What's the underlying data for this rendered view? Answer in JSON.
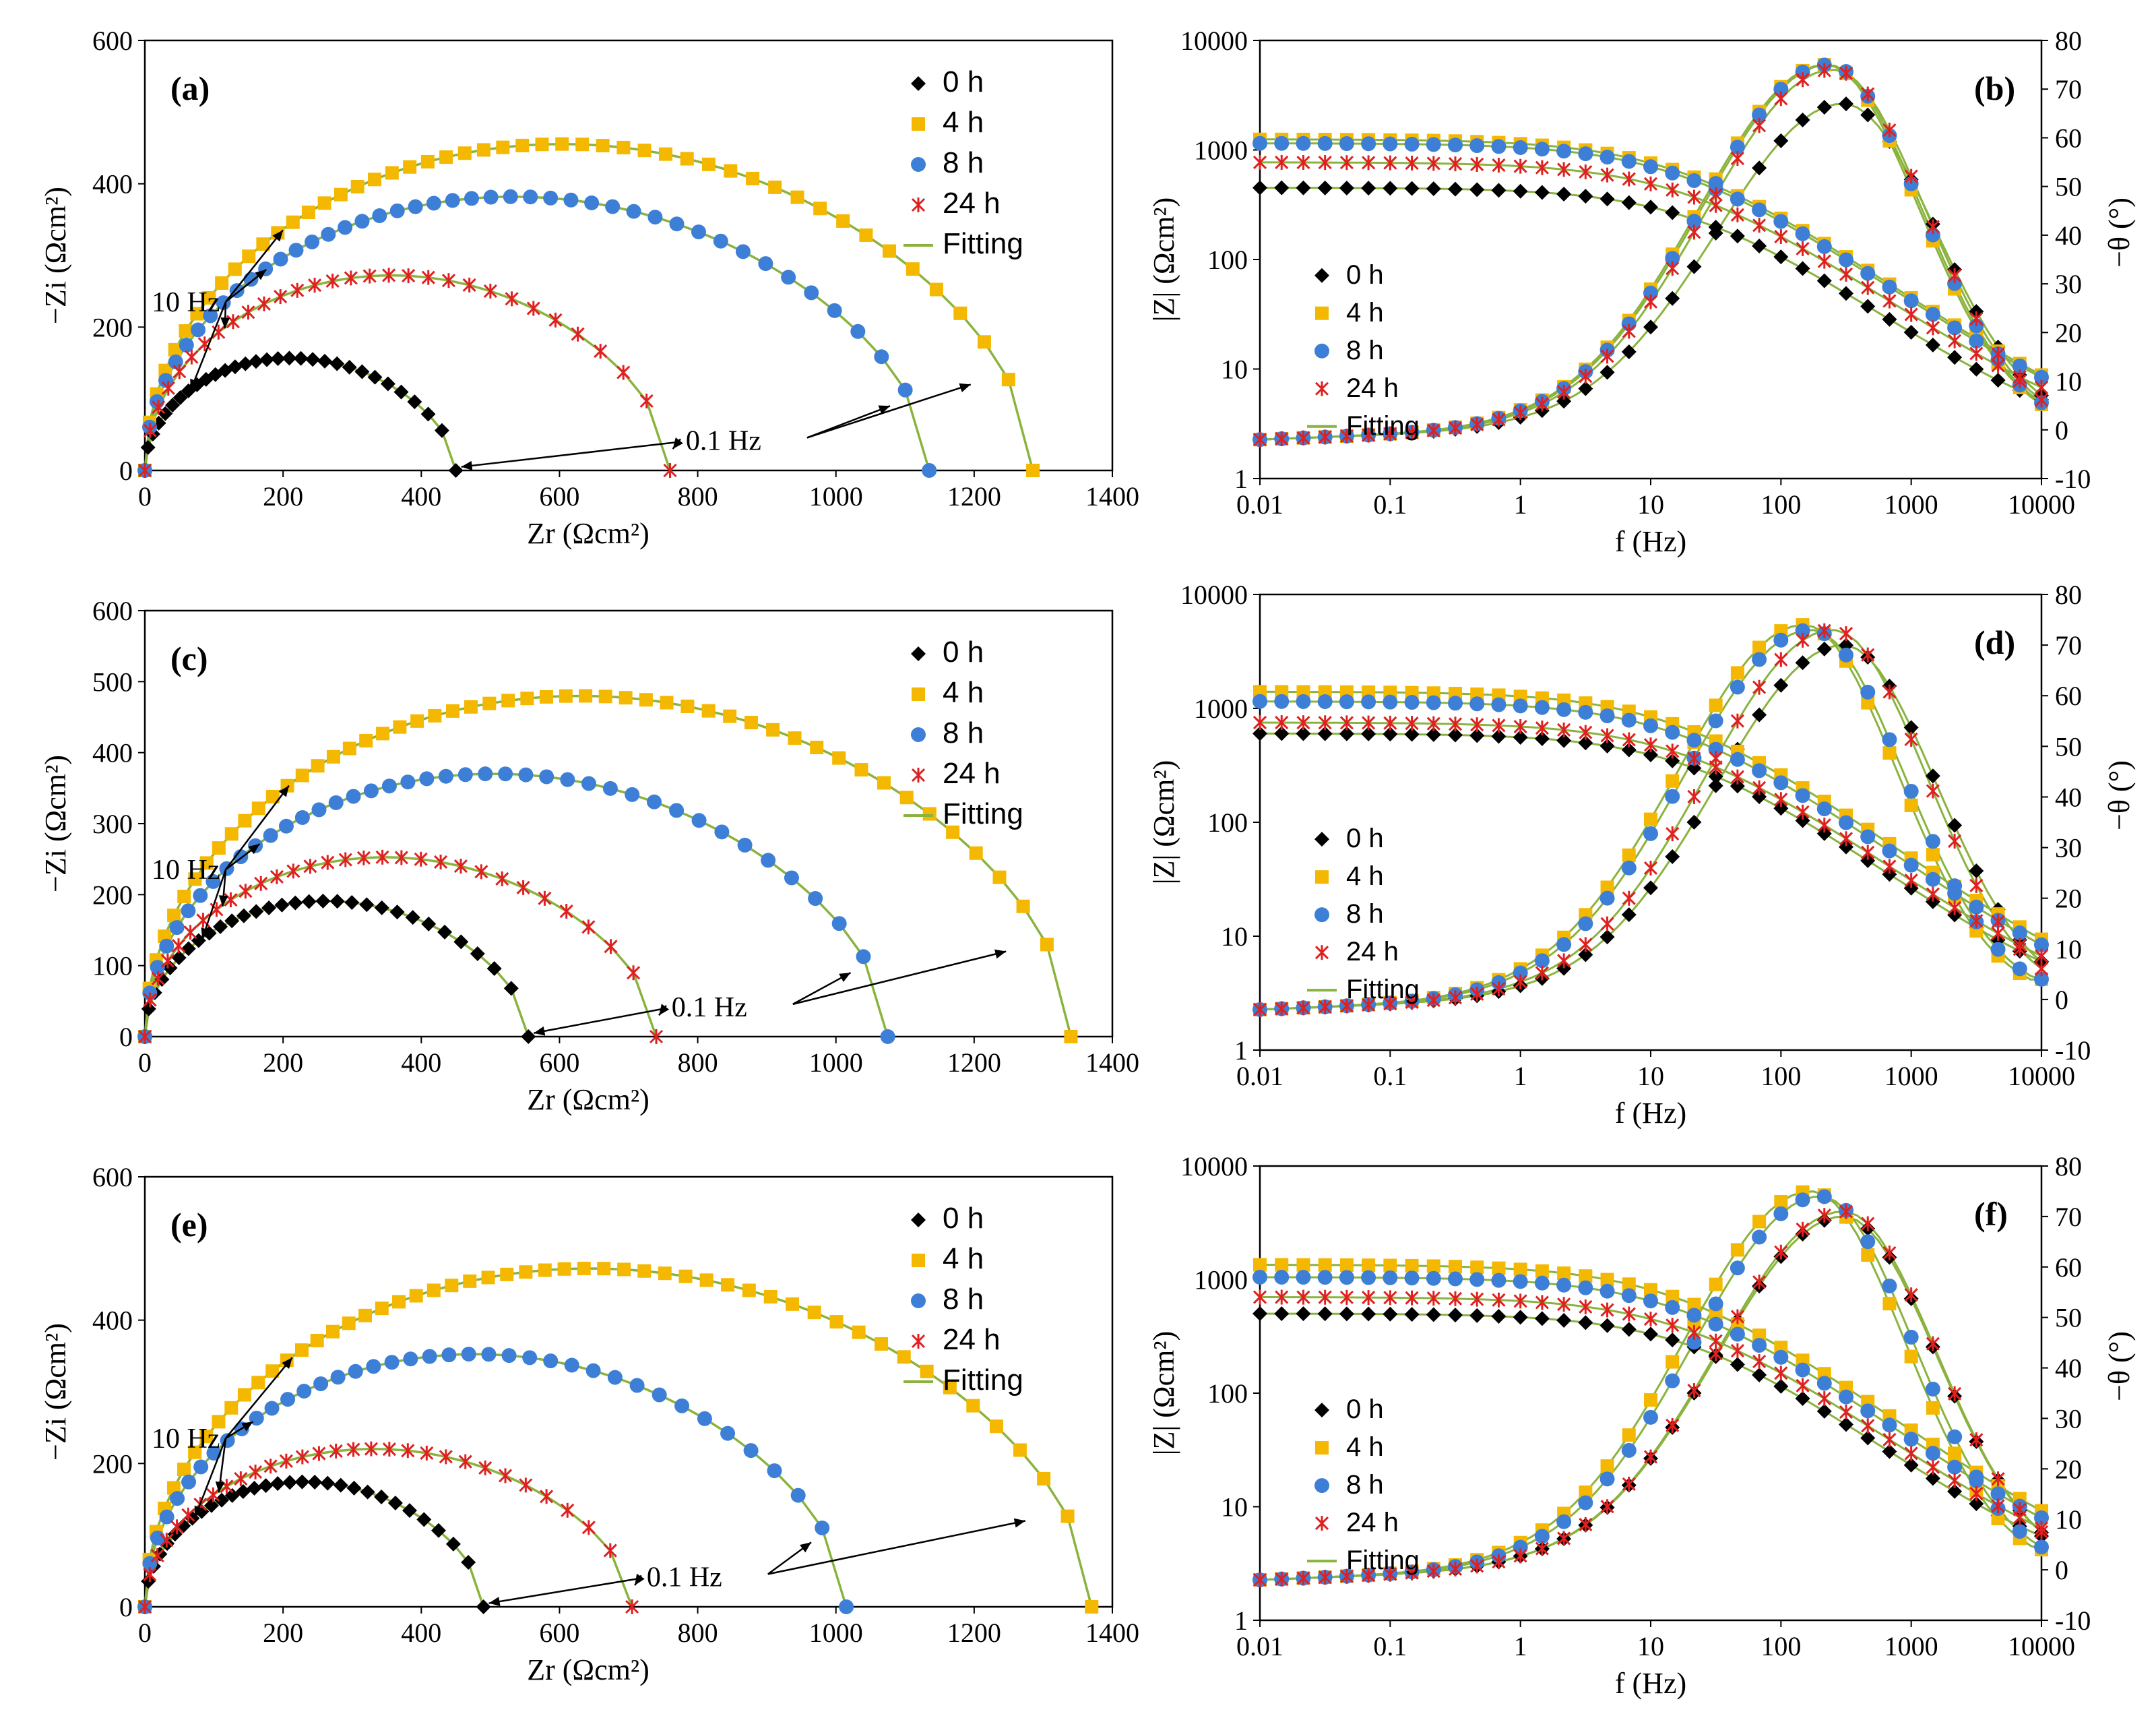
{
  "figure": {
    "nyquist_xlabel": "Zr (Ωcm²)",
    "nyquist_ylabel": "−Zi (Ωcm²)",
    "bode_xlabel": "f (Hz)",
    "bode_ylabel_left": "|Z|  (Ωcm²)",
    "bode_ylabel_right": "−θ (°)"
  },
  "colors": {
    "0 h": "#000000",
    "4 h": "#f5b800",
    "8 h": "#3d7fd6",
    "24 h": "#e02020",
    "Fitting": "#8ab33e"
  },
  "legend_labels": [
    "0 h",
    "4 h",
    "8 h",
    "24 h",
    "Fitting"
  ],
  "chart_data": [
    {
      "panel": "(a)",
      "type": "scatter",
      "xlabel": "Zr (Ωcm²)",
      "ylabel": "−Zi (Ωcm²)",
      "xlim": [
        0,
        1400
      ],
      "ylim": [
        0,
        600
      ],
      "xticks": [
        0,
        200,
        400,
        600,
        800,
        1000,
        1200,
        1400
      ],
      "yticks": [
        0,
        200,
        400,
        600
      ],
      "annotations": [
        "10 Hz",
        "0.1 Hz"
      ],
      "series": [
        {
          "name": "0 h",
          "R": 450,
          "peak": 160,
          "xpeak": 225
        },
        {
          "name": "4 h",
          "R": 1285,
          "peak": 465,
          "xpeak": 600
        },
        {
          "name": "8 h",
          "R": 1135,
          "peak": 390,
          "xpeak": 490
        },
        {
          "name": "24 h",
          "R": 760,
          "peak": 278,
          "xpeak": 370
        }
      ]
    },
    {
      "panel": "(b)",
      "type": "line",
      "xlabel": "f (Hz)",
      "ylabel": "|Z|  (Ωcm²)",
      "y2label": "−θ (°)",
      "xlim": [
        0.01,
        10000
      ],
      "ylim": [
        1,
        10000
      ],
      "y2lim": [
        -10,
        80
      ],
      "xticks": [
        "0.01",
        "0.1",
        "1",
        "10",
        "100",
        "1000",
        "10000"
      ],
      "yticks": [
        "1",
        "10",
        "100",
        "1000",
        "10000"
      ],
      "y2ticks": [
        "-10",
        "0",
        "10",
        "20",
        "30",
        "40",
        "50",
        "60",
        "70",
        "80"
      ],
      "series": [
        {
          "name": "0 h",
          "R": 450,
          "theta_peak": 67,
          "f_peak": 300
        },
        {
          "name": "4 h",
          "R": 1250,
          "theta_peak": 75,
          "f_peak": 220
        },
        {
          "name": "8 h",
          "R": 1150,
          "theta_peak": 75,
          "f_peak": 230
        },
        {
          "name": "24 h",
          "R": 770,
          "theta_peak": 74,
          "f_peak": 250
        }
      ]
    },
    {
      "panel": "(c)",
      "type": "scatter",
      "xlabel": "Zr (Ωcm²)",
      "ylabel": "−Zi (Ωcm²)",
      "xlim": [
        0,
        1400
      ],
      "ylim": [
        0,
        600
      ],
      "xticks": [
        0,
        200,
        400,
        600,
        800,
        1000,
        1200,
        1400
      ],
      "yticks": [
        0,
        100,
        200,
        300,
        400,
        500,
        600
      ],
      "annotations": [
        "10 Hz",
        "0.1 Hz"
      ],
      "series": [
        {
          "name": "0 h",
          "R": 555,
          "peak": 195,
          "xpeak": 270
        },
        {
          "name": "4 h",
          "R": 1340,
          "peak": 490,
          "xpeak": 600
        },
        {
          "name": "8 h",
          "R": 1075,
          "peak": 378,
          "xpeak": 500
        },
        {
          "name": "24 h",
          "R": 740,
          "peak": 258,
          "xpeak": 370
        }
      ]
    },
    {
      "panel": "(d)",
      "type": "line",
      "xlabel": "f (Hz)",
      "ylabel": "|Z|  (Ωcm²)",
      "y2label": "−θ (°)",
      "xlim": [
        0.01,
        10000
      ],
      "ylim": [
        1,
        10000
      ],
      "y2lim": [
        -10,
        80
      ],
      "xticks": [
        "0.01",
        "0.1",
        "1",
        "10",
        "100",
        "1000",
        "10000"
      ],
      "yticks": [
        "1",
        "10",
        "100",
        "1000",
        "10000"
      ],
      "y2ticks": [
        "-10",
        "0",
        "10",
        "20",
        "30",
        "40",
        "50",
        "60",
        "70",
        "80"
      ],
      "series": [
        {
          "name": "0 h",
          "R": 600,
          "theta_peak": 70,
          "f_peak": 300
        },
        {
          "name": "4 h",
          "R": 1400,
          "theta_peak": 74,
          "f_peak": 150
        },
        {
          "name": "8 h",
          "R": 1150,
          "theta_peak": 73,
          "f_peak": 170
        },
        {
          "name": "24 h",
          "R": 750,
          "theta_peak": 73,
          "f_peak": 250
        }
      ]
    },
    {
      "panel": "(e)",
      "type": "scatter",
      "xlabel": "Zr (Ωcm²)",
      "ylabel": "−Zi (Ωcm²)",
      "xlim": [
        0,
        1400
      ],
      "ylim": [
        0,
        600
      ],
      "xticks": [
        0,
        200,
        400,
        600,
        800,
        1000,
        1200,
        1400
      ],
      "yticks": [
        0,
        200,
        400,
        600
      ],
      "annotations": [
        "10 Hz",
        "0.1 Hz"
      ],
      "series": [
        {
          "name": "0 h",
          "R": 490,
          "peak": 178,
          "xpeak": 250
        },
        {
          "name": "4 h",
          "R": 1370,
          "peak": 482,
          "xpeak": 600
        },
        {
          "name": "8 h",
          "R": 1015,
          "peak": 360,
          "xpeak": 460
        },
        {
          "name": "24 h",
          "R": 705,
          "peak": 225,
          "xpeak": 300
        }
      ]
    },
    {
      "panel": "(f)",
      "type": "line",
      "xlabel": "f (Hz)",
      "ylabel": "|Z|  (Ωcm²)",
      "y2label": "−θ (°)",
      "xlim": [
        0.01,
        10000
      ],
      "ylim": [
        1,
        10000
      ],
      "y2lim": [
        -10,
        80
      ],
      "xticks": [
        "0.01",
        "0.1",
        "1",
        "10",
        "100",
        "1000",
        "10000"
      ],
      "yticks": [
        "1",
        "10",
        "100",
        "1000",
        "10000"
      ],
      "y2ticks": [
        "-10",
        "0",
        "10",
        "20",
        "30",
        "40",
        "50",
        "60",
        "70",
        "80"
      ],
      "series": [
        {
          "name": "0 h",
          "R": 500,
          "theta_peak": 70,
          "f_peak": 300
        },
        {
          "name": "4 h",
          "R": 1350,
          "theta_peak": 75,
          "f_peak": 170
        },
        {
          "name": "8 h",
          "R": 1050,
          "theta_peak": 74,
          "f_peak": 200
        },
        {
          "name": "24 h",
          "R": 700,
          "theta_peak": 71,
          "f_peak": 300
        }
      ]
    }
  ]
}
